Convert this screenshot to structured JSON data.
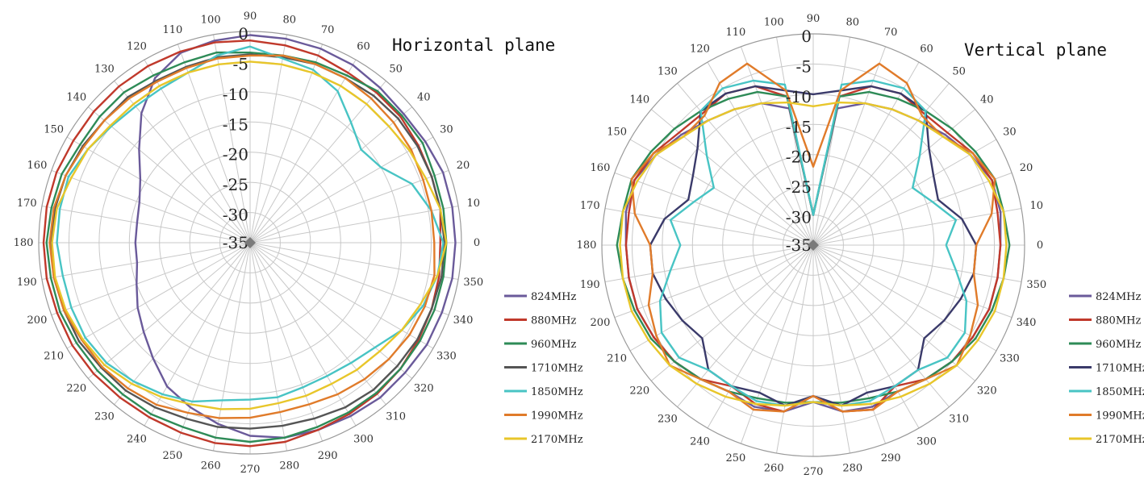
{
  "chart_data": [
    {
      "type": "polar-line",
      "title": "Horizontal plane",
      "r_min": -35,
      "r_max": 0,
      "r_ticks": [
        0,
        -5,
        -10,
        -15,
        -20,
        -25,
        -30,
        -35
      ],
      "angle_ticks": [
        0,
        10,
        20,
        30,
        40,
        50,
        60,
        70,
        80,
        90,
        100,
        110,
        120,
        130,
        140,
        150,
        160,
        170,
        180,
        190,
        200,
        210,
        220,
        230,
        240,
        250,
        260,
        270,
        280,
        290,
        300,
        310,
        320,
        330,
        340,
        350
      ],
      "angle_zero": "right",
      "angle_direction": "counterclockwise",
      "grid": true,
      "legend_position": "right",
      "angles": [
        0,
        10,
        20,
        30,
        40,
        50,
        60,
        70,
        80,
        90,
        100,
        110,
        120,
        130,
        140,
        150,
        160,
        170,
        180,
        190,
        200,
        210,
        220,
        230,
        240,
        250,
        260,
        270,
        280,
        290,
        300,
        310,
        320,
        330,
        340,
        350
      ],
      "series": [
        {
          "name": "824MHz",
          "color": "#6a5a9a",
          "values": [
            -1.0,
            -1,
            -1,
            -1.5,
            -1.8,
            -1.5,
            -1,
            -0.8,
            -0.7,
            -0.6,
            -1,
            -1.5,
            -3.5,
            -7,
            -11,
            -14,
            -15.5,
            -16,
            -16,
            -16,
            -15,
            -13.5,
            -12,
            -10,
            -7.5,
            -6,
            -4.5,
            -3,
            -2.2,
            -2,
            -1.8,
            -1.5,
            -1.5,
            -1.2,
            -1.2,
            -1
          ]
        },
        {
          "name": "880MHz",
          "color": "#c0392b",
          "values": [
            -3.5,
            -3,
            -3,
            -2.8,
            -2.5,
            -2.5,
            -2.5,
            -2,
            -1.8,
            -1.5,
            -1.3,
            -1.3,
            -1.2,
            -1.2,
            -1.2,
            -1.2,
            -0.9,
            -0.8,
            -0.8,
            -0.8,
            -1,
            -1,
            -1.2,
            -1.5,
            -1.6,
            -1.5,
            -1.3,
            -1.3,
            -1.5,
            -2,
            -2.2,
            -2.3,
            -2.5,
            -2.8,
            -3,
            -3.2
          ]
        },
        {
          "name": "960MHz",
          "color": "#2e8b57",
          "values": [
            -2.5,
            -2.5,
            -2.5,
            -2,
            -2.2,
            -2.2,
            -3,
            -3.2,
            -3.5,
            -3.5,
            -3,
            -3.2,
            -3,
            -2.5,
            -2.5,
            -2.5,
            -1.8,
            -1.6,
            -1.3,
            -1.5,
            -1.5,
            -1.8,
            -2,
            -2.2,
            -2.2,
            -2.5,
            -2.2,
            -2,
            -2.2,
            -2.5,
            -2.5,
            -2.5,
            -2.5,
            -2.5,
            -2.5,
            -2.5
          ]
        },
        {
          "name": "1710MHz",
          "color": "#555555",
          "values": [
            -2.8,
            -3,
            -3,
            -3,
            -3,
            -3.2,
            -3.5,
            -3.5,
            -3.8,
            -3.8,
            -3.8,
            -4,
            -4,
            -3.5,
            -3.5,
            -3,
            -2.5,
            -2.2,
            -2,
            -2,
            -2.2,
            -2.3,
            -2.8,
            -3,
            -3.5,
            -4,
            -4,
            -4.2,
            -4.2,
            -4,
            -3.5,
            -3.2,
            -3.2,
            -3,
            -3,
            -2.8
          ]
        },
        {
          "name": "1850MHz",
          "color": "#48c4c4",
          "values": [
            -3,
            -4.5,
            -6.5,
            -10,
            -11,
            -9,
            -6,
            -4.5,
            -4,
            -2.5,
            -3.5,
            -5,
            -5.5,
            -5.5,
            -5,
            -4,
            -3,
            -3,
            -3,
            -3.5,
            -3.5,
            -3.5,
            -4,
            -5,
            -6,
            -7,
            -8.5,
            -9,
            -9,
            -9.5,
            -9.5,
            -9,
            -8,
            -6,
            -4.5,
            -3.5
          ]
        },
        {
          "name": "1990MHz",
          "color": "#e07b2a",
          "values": [
            -4.5,
            -4.5,
            -4.5,
            -4.2,
            -4,
            -3.8,
            -3.5,
            -3.5,
            -3.5,
            -4,
            -4,
            -4.2,
            -4.2,
            -3.8,
            -3.5,
            -3.2,
            -2.5,
            -2,
            -1.8,
            -2,
            -2.2,
            -2.8,
            -3,
            -3.5,
            -4,
            -5,
            -5.5,
            -6,
            -6.5,
            -6.5,
            -6,
            -5.5,
            -5,
            -4.5,
            -4.2,
            -4
          ]
        },
        {
          "name": "2170MHz",
          "color": "#e8c62a",
          "values": [
            -2.5,
            -3,
            -4,
            -4.5,
            -5,
            -5,
            -5,
            -5,
            -5,
            -5,
            -5,
            -5,
            -5,
            -5,
            -4.8,
            -4,
            -3.5,
            -2.5,
            -2.2,
            -2.2,
            -2.5,
            -3,
            -3.5,
            -4.5,
            -5.5,
            -6.5,
            -7,
            -7.5,
            -8,
            -8,
            -8,
            -7.5,
            -7,
            -6,
            -5,
            -3.5
          ]
        }
      ]
    },
    {
      "type": "polar-line",
      "title": "Vertical plane",
      "r_min": -35,
      "r_max": 0,
      "r_ticks": [
        0,
        -5,
        -10,
        -15,
        -20,
        -25,
        -30,
        -35
      ],
      "angle_ticks": [
        0,
        10,
        20,
        30,
        40,
        50,
        60,
        70,
        80,
        90,
        100,
        110,
        120,
        130,
        140,
        150,
        160,
        170,
        180,
        190,
        200,
        210,
        220,
        230,
        240,
        250,
        260,
        270,
        280,
        290,
        300,
        310,
        320,
        330,
        340,
        350
      ],
      "angle_zero": "right",
      "angle_direction": "counterclockwise",
      "grid": true,
      "legend_position": "right",
      "angles": [
        0,
        10,
        20,
        30,
        40,
        50,
        60,
        70,
        80,
        90,
        100,
        110,
        120,
        130,
        140,
        150,
        160,
        170,
        180,
        190,
        200,
        210,
        220,
        230,
        240,
        250,
        260,
        270,
        280,
        290,
        300,
        310,
        320,
        330,
        340,
        350
      ],
      "series": [
        {
          "name": "824MHz",
          "color": "#6a5a9a",
          "values": [
            -4,
            -3.5,
            -3.5,
            -5,
            -6.5,
            -8,
            -9,
            -10,
            -12,
            -30,
            -12,
            -10,
            -9,
            -8,
            -6.5,
            -5,
            -3.5,
            -3.5,
            -4,
            -4,
            -4,
            -4.5,
            -5,
            -6,
            -7,
            -6.5,
            -7,
            -9,
            -7,
            -6.5,
            -7,
            -6,
            -5,
            -4.5,
            -4,
            -4
          ]
        },
        {
          "name": "880MHz",
          "color": "#c0392b",
          "values": [
            -4,
            -4,
            -3.5,
            -4.5,
            -6,
            -6.5,
            -6,
            -7,
            -10,
            -30,
            -10,
            -7,
            -6,
            -6.5,
            -6,
            -4.5,
            -3.5,
            -4,
            -4,
            -4,
            -4,
            -4.5,
            -5,
            -6,
            -8,
            -7,
            -7,
            -10,
            -7,
            -6,
            -8,
            -6,
            -5,
            -4.5,
            -4,
            -4
          ]
        },
        {
          "name": "960MHz",
          "color": "#2e8b57",
          "values": [
            -2.5,
            -3,
            -3,
            -4,
            -5,
            -6,
            -7,
            -8,
            -10,
            -30,
            -10,
            -8,
            -7,
            -6,
            -5,
            -4,
            -3,
            -3,
            -2.5,
            -3,
            -3.5,
            -4,
            -5,
            -6,
            -7,
            -8,
            -8.5,
            -9,
            -8.5,
            -8,
            -7,
            -6,
            -5,
            -4,
            -3.5,
            -3
          ]
        },
        {
          "name": "1710MHz",
          "color": "#3a3a6a",
          "values": [
            -8,
            -10,
            -13,
            -12,
            -10,
            -6,
            -6,
            -7,
            -9,
            -10,
            -9,
            -7,
            -6,
            -6,
            -10,
            -12,
            -13,
            -10,
            -8,
            -8,
            -9,
            -10,
            -11,
            -8,
            -8,
            -9,
            -8,
            -10,
            -8,
            -9,
            -8,
            -8,
            -11,
            -10,
            -9,
            -8
          ]
        },
        {
          "name": "1850MHz",
          "color": "#48c4c4",
          "values": [
            -13,
            -11,
            -14,
            -16,
            -12,
            -6,
            -5,
            -6,
            -8,
            -30,
            -8,
            -6,
            -5,
            -6,
            -12,
            -16,
            -14,
            -11,
            -13,
            -11,
            -8,
            -6,
            -6,
            -8,
            -8,
            -7.5,
            -8,
            -9,
            -8,
            -7.5,
            -8,
            -8,
            -6,
            -6,
            -8,
            -11
          ]
        },
        {
          "name": "1990MHz",
          "color": "#e07b2a",
          "values": [
            -8,
            -5,
            -3,
            -4.5,
            -7,
            -7,
            -4,
            -3,
            -9,
            -22,
            -9,
            -3,
            -4,
            -7,
            -7,
            -4.5,
            -3,
            -5,
            -8,
            -8,
            -6,
            -5,
            -4,
            -6,
            -7,
            -6,
            -7,
            -10,
            -7,
            -6,
            -7,
            -6,
            -4,
            -5,
            -6,
            -8
          ]
        },
        {
          "name": "2170MHz",
          "color": "#e8c62a",
          "values": [
            -3,
            -3,
            -4,
            -5,
            -7,
            -8,
            -9,
            -10,
            -11,
            -12,
            -11,
            -10,
            -9,
            -8,
            -7,
            -5,
            -4,
            -3,
            -3,
            -3,
            -3,
            -3.5,
            -4,
            -5,
            -6,
            -7,
            -8,
            -9,
            -8,
            -7,
            -6,
            -5,
            -4,
            -3.5,
            -3,
            -3
          ]
        }
      ]
    }
  ]
}
